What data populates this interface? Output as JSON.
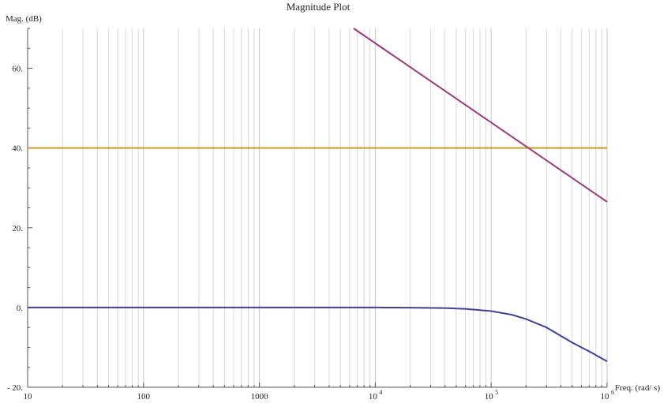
{
  "chart_data": {
    "type": "line",
    "title": "Magnitude Plot",
    "xlabel": "Freq. (rad/ s)",
    "ylabel": "Mag. (dB)",
    "x_scale": "log",
    "xlim": [
      10,
      1000000
    ],
    "ylim": [
      -20,
      70
    ],
    "grid": true,
    "x_ticks": [
      {
        "value": 10,
        "label": "10"
      },
      {
        "value": 100,
        "label": "100"
      },
      {
        "value": 1000,
        "label": "1000"
      },
      {
        "value": 10000,
        "base": "10",
        "exp": "4"
      },
      {
        "value": 100000,
        "base": "10",
        "exp": "5"
      },
      {
        "value": 1000000,
        "base": "10",
        "exp": "6"
      }
    ],
    "y_ticks": [
      {
        "value": -20,
        "label": "- 20."
      },
      {
        "value": 0,
        "label": "0."
      },
      {
        "value": 20,
        "label": "20."
      },
      {
        "value": 40,
        "label": "40."
      },
      {
        "value": 60,
        "label": "60."
      }
    ],
    "series": [
      {
        "color": "#3f3f97",
        "x": [
          10,
          100,
          1000,
          10000,
          20000,
          40000,
          60000,
          100000,
          150000,
          200000,
          300000,
          500000,
          700000,
          1000000
        ],
        "y": [
          0,
          0,
          0,
          0,
          -0.05,
          -0.15,
          -0.35,
          -0.9,
          -1.8,
          -2.9,
          -5,
          -8.8,
          -11,
          -13.5
        ]
      },
      {
        "color": "#c8a12e",
        "x": [
          10,
          1000000
        ],
        "y": [
          40,
          40
        ]
      },
      {
        "color": "#9b3a78",
        "x": [
          6500,
          1000000
        ],
        "y": [
          70,
          26.5
        ]
      }
    ]
  }
}
